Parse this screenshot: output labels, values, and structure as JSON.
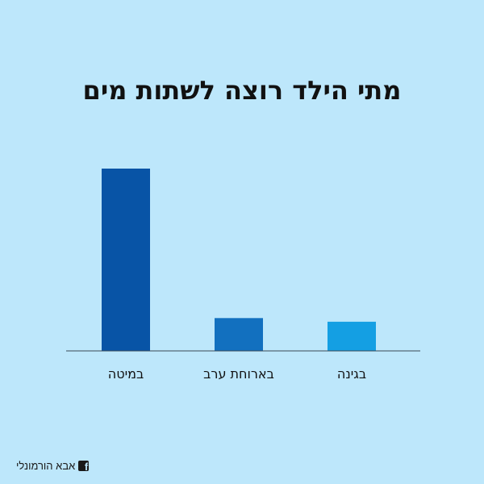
{
  "page": {
    "title": "מתי הילד רוצה לשתות מים",
    "footer_text": "אבא הורמונלי",
    "footer_icon": "facebook-icon",
    "background": "#bde7fb"
  },
  "chart_data": {
    "type": "bar",
    "title": "מתי הילד רוצה לשתות מים",
    "categories": [
      "במיטה",
      "בארוחת ערב",
      "בגינה"
    ],
    "values": [
      100,
      18,
      16
    ],
    "colors": [
      "#0854a6",
      "#1270bf",
      "#149fe3"
    ],
    "ylim": [
      0,
      100
    ],
    "grid": false,
    "xlabel": "",
    "ylabel": ""
  }
}
